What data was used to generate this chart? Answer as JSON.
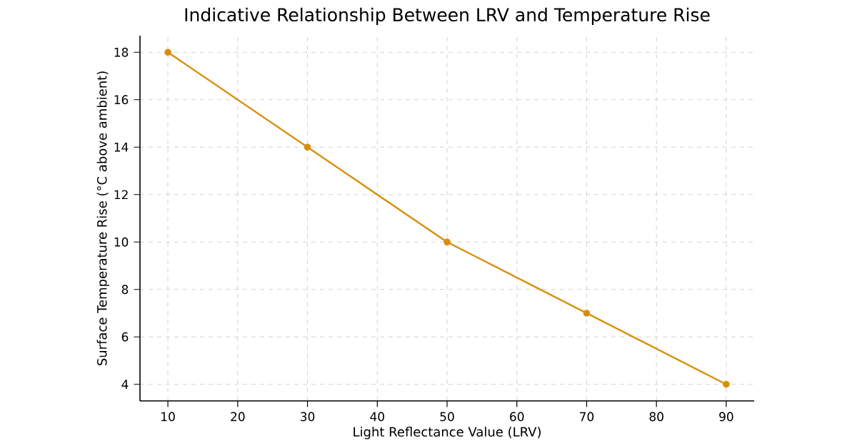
{
  "chart_data": {
    "type": "line",
    "title": "Indicative Relationship Between LRV and Temperature Rise",
    "xlabel": "Light Reflectance Value (LRV)",
    "ylabel": "Surface Temperature Rise (°C above ambient)",
    "x": [
      10,
      30,
      50,
      70,
      90
    ],
    "series": [
      {
        "color": "#d98e0b",
        "values": [
          18,
          14,
          10,
          7,
          4
        ]
      }
    ],
    "xlim": [
      6,
      94
    ],
    "ylim": [
      3.3,
      18.7
    ],
    "xticks": [
      10,
      20,
      30,
      40,
      50,
      60,
      70,
      80,
      90
    ],
    "yticks": [
      4,
      6,
      8,
      10,
      12,
      14,
      16,
      18
    ],
    "grid": true,
    "marker": "circle",
    "line_style": "solid"
  }
}
